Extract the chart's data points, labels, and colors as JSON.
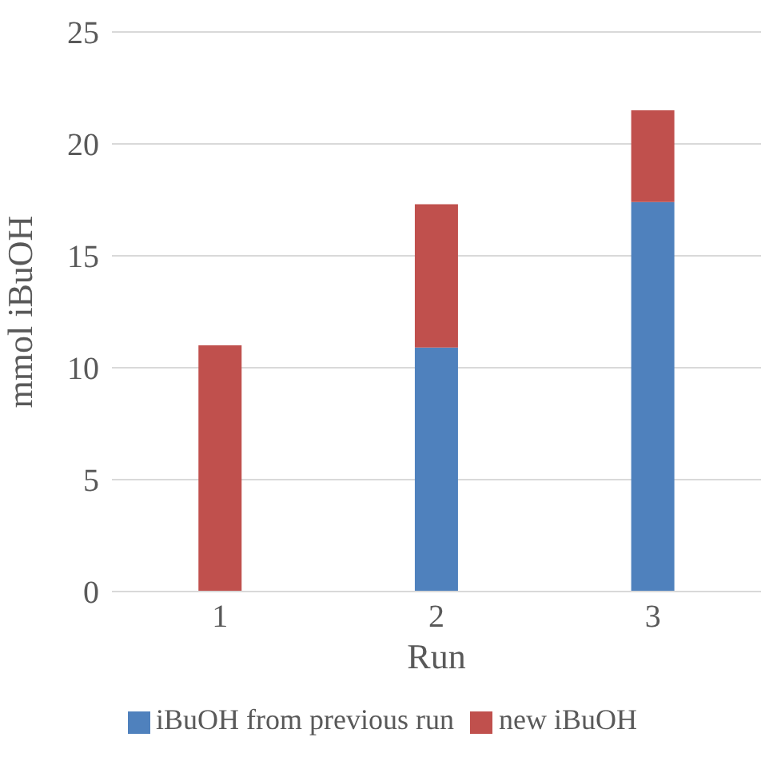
{
  "chart_data": {
    "type": "bar",
    "stacked": true,
    "xlabel": "Run",
    "ylabel": "mmol iBuOH",
    "categories": [
      "1",
      "2",
      "3"
    ],
    "series": [
      {
        "name": "iBuOH from previous run",
        "color": "#4f81bd",
        "values": [
          0,
          10.9,
          17.4
        ]
      },
      {
        "name": "new iBuOH",
        "color": "#c0504d",
        "values": [
          11,
          6.4,
          4.1
        ]
      }
    ],
    "ylim": [
      0,
      25
    ],
    "yticks": [
      0,
      5,
      10,
      15,
      20,
      25
    ],
    "grid": "y",
    "legend": "bottom"
  }
}
